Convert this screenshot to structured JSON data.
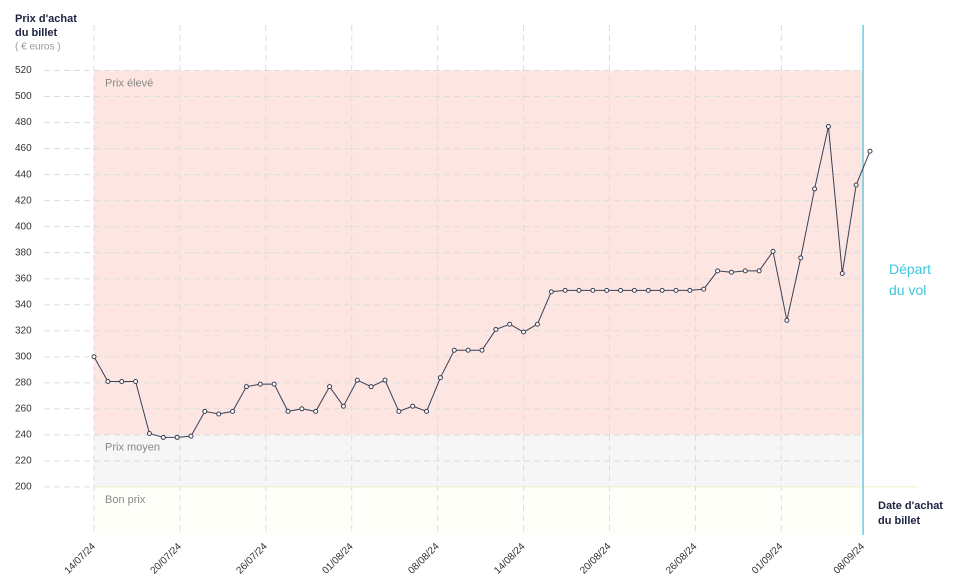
{
  "chart_data": {
    "type": "line",
    "y_title": "Prix d'achat du billet",
    "y_unit": "( € euros )",
    "x_title": "Date d'achat du billet",
    "x": [
      0,
      1,
      2,
      3,
      4,
      5,
      6,
      7,
      8,
      9,
      10,
      11,
      12,
      13,
      14,
      15,
      16,
      17,
      18,
      19,
      20,
      21,
      22,
      23,
      24,
      25,
      26,
      27,
      28,
      29,
      30,
      31,
      32,
      33,
      34,
      35,
      36,
      37,
      38,
      39,
      40,
      41,
      42,
      43,
      44,
      45,
      46,
      47,
      48,
      49,
      50,
      51,
      52,
      53,
      54,
      55,
      56
    ],
    "series": [
      {
        "color": "#3a3f55",
        "values": [
          300,
          281,
          281,
          281,
          241,
          238,
          238,
          239,
          258,
          256,
          258,
          277,
          279,
          279,
          258,
          260,
          258,
          277,
          262,
          282,
          277,
          282,
          258,
          262,
          258,
          284,
          305,
          305,
          305,
          321,
          325,
          319,
          325,
          350,
          351,
          351,
          351,
          351,
          351,
          351,
          351,
          351,
          351,
          351,
          352,
          366,
          365,
          366,
          366,
          381,
          328,
          376,
          429,
          477,
          364,
          432,
          458
        ]
      }
    ],
    "xlim": [
      0,
      56
    ],
    "xticks": [
      {
        "value": 0,
        "label": "14/07/24"
      },
      {
        "value": 6.2,
        "label": "20/07/24"
      },
      {
        "value": 12.4,
        "label": "26/07/24"
      },
      {
        "value": 18.6,
        "label": "01/08/24"
      },
      {
        "value": 24.8,
        "label": "08/08/24"
      },
      {
        "value": 31,
        "label": "14/08/24"
      },
      {
        "value": 37.2,
        "label": "20/08/24"
      },
      {
        "value": 43.4,
        "label": "26/08/24"
      },
      {
        "value": 49.6,
        "label": "01/09/24"
      },
      {
        "value": 55.5,
        "label": "08/09/24"
      }
    ],
    "ylim": [
      163,
      555
    ],
    "yticks": [
      200,
      220,
      240,
      260,
      280,
      300,
      320,
      340,
      360,
      380,
      400,
      420,
      440,
      460,
      480,
      500,
      520
    ],
    "zones": [
      {
        "label": "Prix élevé",
        "from": 240,
        "to": 520,
        "color": "#fde6e1"
      },
      {
        "label": "Prix moyen",
        "from": 200,
        "to": 240,
        "color": "#f6f6f6"
      },
      {
        "label": "Bon prix",
        "from": 163,
        "to": 200,
        "color": "#fffffa"
      }
    ],
    "departure": {
      "x": 55.5,
      "label": "Départ du vol",
      "color": "#3cc6e0"
    },
    "grid": true
  }
}
